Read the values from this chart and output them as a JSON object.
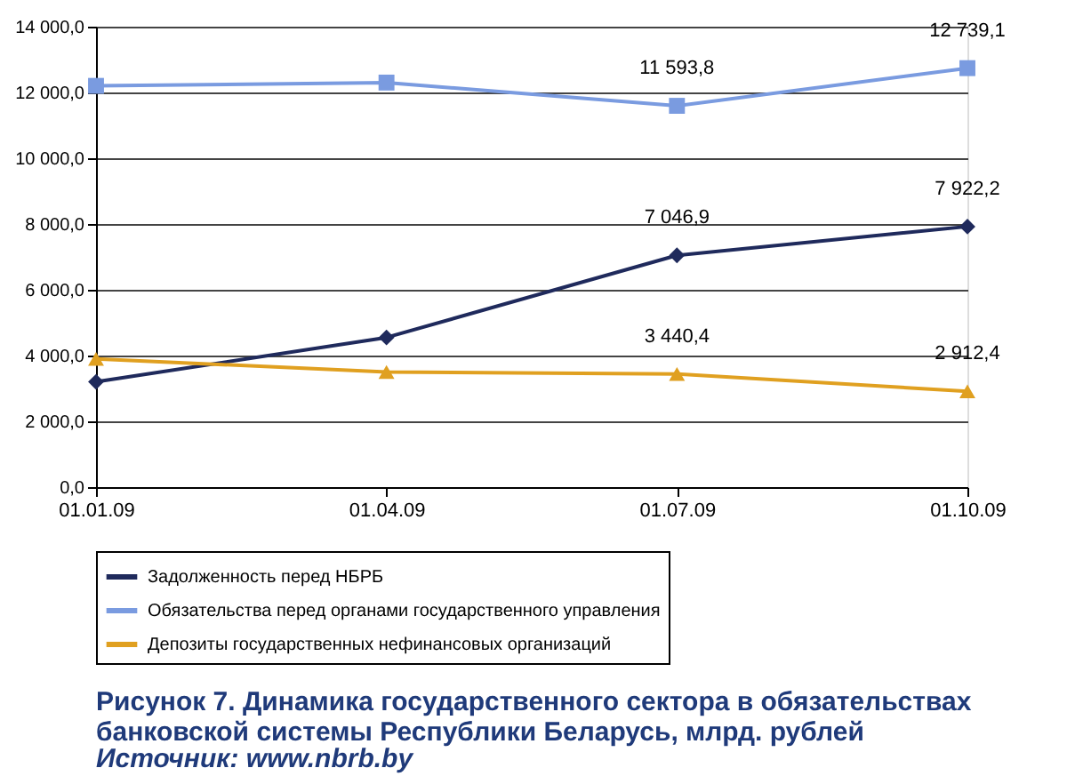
{
  "chart_data": {
    "type": "line",
    "categories": [
      "01.01.09",
      "01.04.09",
      "01.07.09",
      "01.10.09"
    ],
    "series": [
      {
        "name": "Задолженность перед НБРБ",
        "color": "#1f2a5c",
        "marker": "diamond",
        "values": [
          3200,
          4550,
          7046.9,
          7922.2
        ],
        "value_labels": [
          null,
          null,
          "7 046,9",
          "7 922,2"
        ]
      },
      {
        "name": "Обязательства перед органами государственного управления",
        "color": "#7a9be0",
        "marker": "square",
        "values": [
          12200,
          12300,
          11593.8,
          12739.1
        ],
        "value_labels": [
          null,
          null,
          "11 593,8",
          "12 739,1"
        ]
      },
      {
        "name": "Депозиты государственных нефинансовых организаций",
        "color": "#e0a020",
        "marker": "triangle",
        "values": [
          3900,
          3500,
          3440.4,
          2912.4
        ],
        "value_labels": [
          null,
          null,
          "3 440,4",
          "2 912,4"
        ]
      }
    ],
    "ylim": [
      0,
      14000
    ],
    "yticks": [
      {
        "value": 0,
        "label": "0,0"
      },
      {
        "value": 2000,
        "label": "2 000,0"
      },
      {
        "value": 4000,
        "label": "4 000,0"
      },
      {
        "value": 6000,
        "label": "6 000,0"
      },
      {
        "value": 8000,
        "label": "8 000,0"
      },
      {
        "value": 10000,
        "label": "10 000,0"
      },
      {
        "value": 12000,
        "label": "12 000,0"
      },
      {
        "value": 14000,
        "label": "14 000,0"
      }
    ],
    "grid": "y",
    "legend": "bottom",
    "title": "Рисунок 7. Динамика государственного сектора в обязательствах банковской системы Республики Беларусь, млрд. рублей",
    "annotations": [
      "Источник: www.nbrb.by"
    ]
  }
}
